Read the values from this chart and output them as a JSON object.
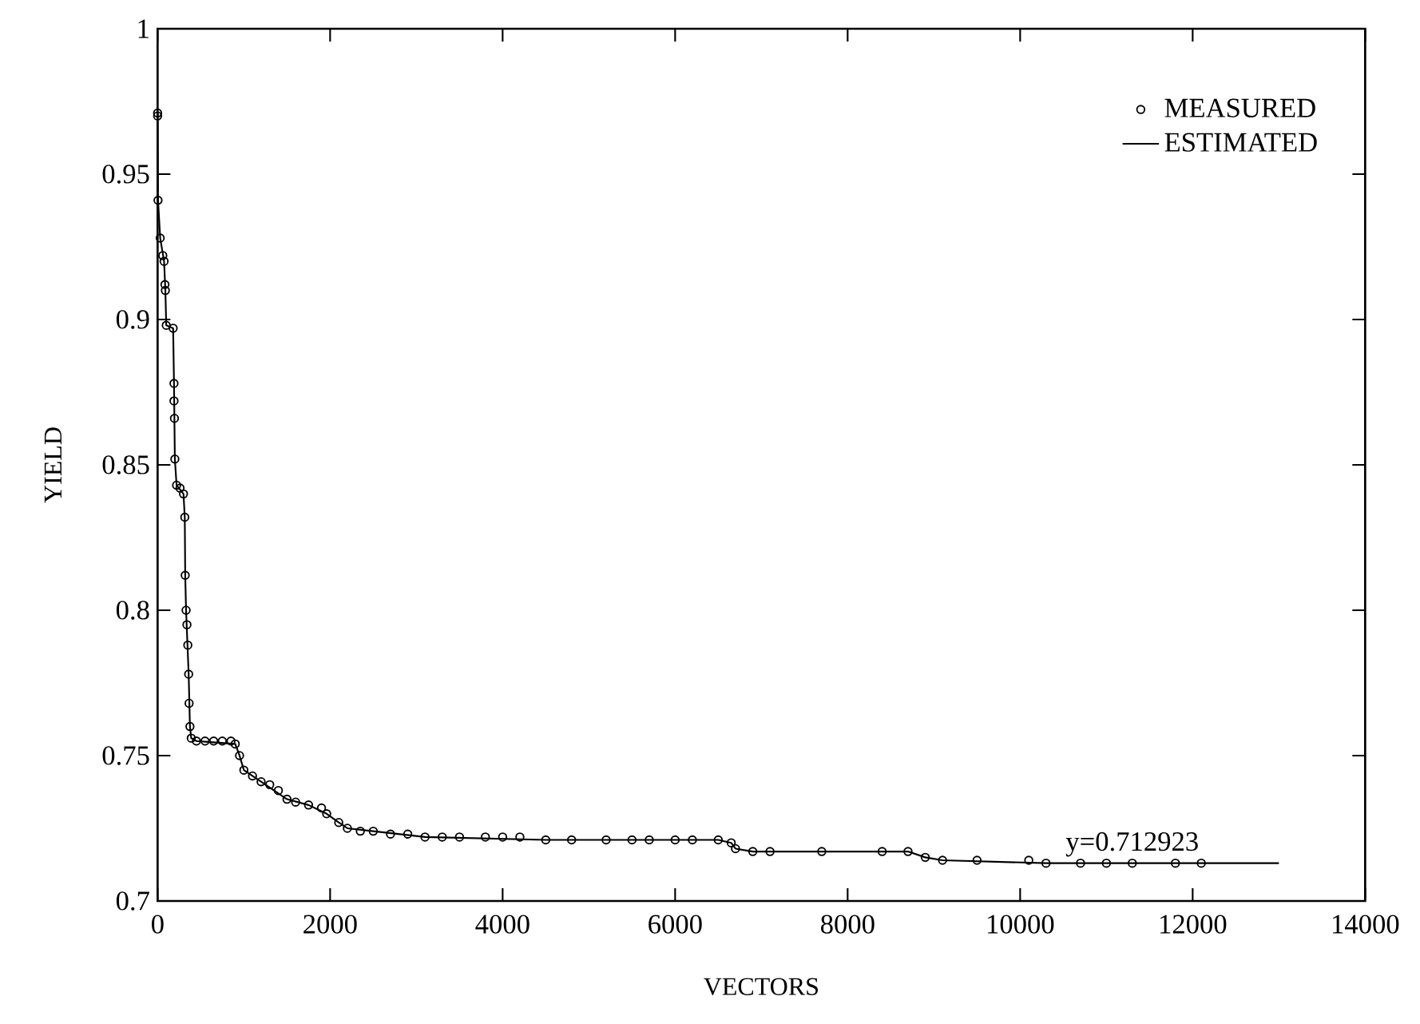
{
  "chart_data": {
    "type": "line",
    "xlabel": "VECTORS",
    "ylabel": "YIELD",
    "xlim": [
      0,
      14000
    ],
    "xticks": [
      0,
      2000,
      4000,
      6000,
      8000,
      10000,
      12000,
      14000
    ],
    "ylim": [
      0.7,
      1
    ],
    "yticks": [
      0.7,
      0.75,
      0.8,
      0.85,
      0.9,
      0.95,
      1
    ],
    "grid": false,
    "legend": "top right",
    "annotations": [
      {
        "text": "y=0.712923",
        "x": 11300,
        "y": 0.712923
      }
    ],
    "series": [
      {
        "name": "MEASURED",
        "type": "scatter",
        "marker": "circle",
        "color": "#000000",
        "x": [
          0,
          0,
          5,
          30,
          60,
          75,
          85,
          90,
          100,
          180,
          190,
          190,
          195,
          200,
          220,
          260,
          300,
          315,
          320,
          330,
          340,
          350,
          360,
          365,
          375,
          390,
          450,
          550,
          650,
          750,
          850,
          900,
          950,
          1000,
          1100,
          1200,
          1300,
          1400,
          1500,
          1600,
          1750,
          1900,
          1960,
          2100,
          2200,
          2350,
          2500,
          2700,
          2900,
          3100,
          3300,
          3500,
          3800,
          4000,
          4200,
          4500,
          4800,
          5200,
          5500,
          5700,
          6000,
          6200,
          6500,
          6650,
          6700,
          6900,
          7100,
          7700,
          8400,
          8700,
          8900,
          9100,
          9500,
          10100,
          10300,
          10700,
          11000,
          11300,
          11800,
          12100
        ],
        "values": [
          0.971,
          0.97,
          0.941,
          0.928,
          0.922,
          0.92,
          0.912,
          0.91,
          0.898,
          0.897,
          0.878,
          0.872,
          0.866,
          0.852,
          0.843,
          0.842,
          0.84,
          0.832,
          0.812,
          0.8,
          0.795,
          0.788,
          0.778,
          0.768,
          0.76,
          0.756,
          0.755,
          0.755,
          0.755,
          0.755,
          0.755,
          0.754,
          0.75,
          0.745,
          0.743,
          0.741,
          0.74,
          0.738,
          0.735,
          0.734,
          0.733,
          0.732,
          0.73,
          0.727,
          0.725,
          0.724,
          0.724,
          0.723,
          0.723,
          0.722,
          0.722,
          0.722,
          0.722,
          0.722,
          0.722,
          0.721,
          0.721,
          0.721,
          0.721,
          0.721,
          0.721,
          0.721,
          0.721,
          0.72,
          0.718,
          0.717,
          0.717,
          0.717,
          0.717,
          0.717,
          0.715,
          0.714,
          0.714,
          0.714,
          0.713,
          0.713,
          0.713,
          0.713,
          0.713,
          0.713
        ]
      },
      {
        "name": "ESTIMATED",
        "marker": "none",
        "line_style": "solid",
        "color": "#000000",
        "x": [
          0,
          5,
          30,
          75,
          90,
          100,
          180,
          190,
          200,
          220,
          300,
          315,
          320,
          330,
          360,
          375,
          390,
          450,
          900,
          950,
          1000,
          1200,
          1500,
          1750,
          1960,
          2100,
          2200,
          2500,
          3100,
          4500,
          6500,
          6650,
          6700,
          6900,
          8700,
          8900,
          9100,
          10300,
          13000
        ],
        "values": [
          0.971,
          0.941,
          0.928,
          0.92,
          0.91,
          0.898,
          0.897,
          0.878,
          0.852,
          0.843,
          0.84,
          0.832,
          0.812,
          0.8,
          0.778,
          0.76,
          0.756,
          0.755,
          0.754,
          0.75,
          0.745,
          0.741,
          0.735,
          0.733,
          0.73,
          0.727,
          0.725,
          0.724,
          0.722,
          0.721,
          0.721,
          0.72,
          0.718,
          0.717,
          0.717,
          0.715,
          0.714,
          0.713,
          0.713
        ]
      }
    ]
  }
}
